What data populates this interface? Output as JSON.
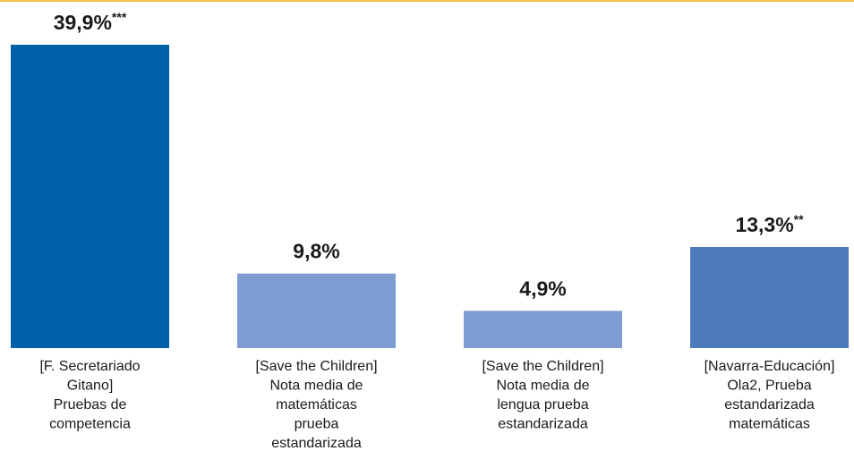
{
  "chart_data": {
    "type": "bar",
    "categories": [
      [
        "[F. Secretariado",
        "Gitano]",
        "Pruebas de",
        "competencia"
      ],
      [
        "[Save the Children]",
        "Nota media de",
        "matemáticas",
        "prueba",
        "estandarizada"
      ],
      [
        "[Save the Children]",
        "Nota media de",
        "lengua prueba",
        "estandarizada"
      ],
      [
        "[Navarra-Educación]",
        "Ola2, Prueba",
        "estandarizada",
        "matemáticas"
      ]
    ],
    "values": [
      39.9,
      9.8,
      4.9,
      13.3
    ],
    "value_labels": [
      "39,9%",
      "9,8%",
      "4,9%",
      "13,3%"
    ],
    "significance": [
      "***",
      "",
      "",
      "**"
    ],
    "ylim": [
      0,
      39.9
    ],
    "colors": [
      "#0060a8",
      "#7f9cd2",
      "#7f9cd2",
      "#4c7abc"
    ],
    "accent_rule": "#f2c24b"
  }
}
